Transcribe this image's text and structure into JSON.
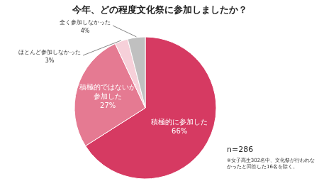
{
  "chart_data": {
    "type": "pie",
    "title": "今年、どの程度文化祭に参加しましたか？",
    "categories": [
      "積極的に参加した",
      "積極的ではないが参加した",
      "ほとんど参加しなかった",
      "全く参加しなかった"
    ],
    "values": [
      66,
      27,
      3,
      4
    ],
    "value_labels": [
      "66%",
      "27%",
      "3%",
      "4%"
    ],
    "colors": [
      "#d63a62",
      "#e57a92",
      "#f6d0d9",
      "#c0c0c0"
    ],
    "data_labels": true,
    "annotations": [
      "n=286",
      "※女子高生302名中、文化祭が行われなかったと回答した16名を除く。"
    ]
  }
}
